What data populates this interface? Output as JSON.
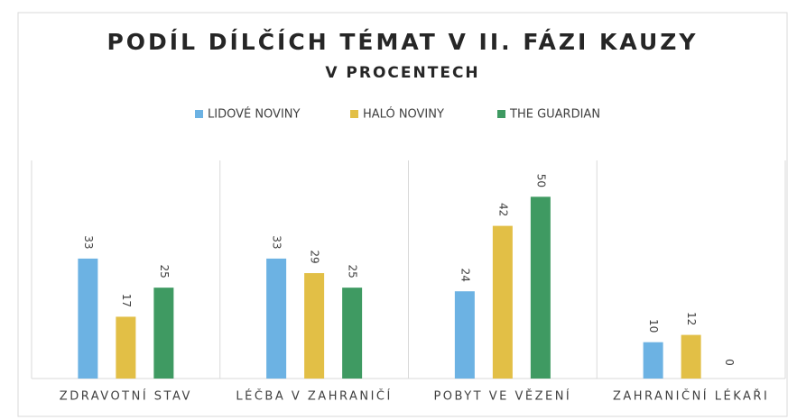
{
  "chart_data": {
    "type": "bar",
    "title": "PODÍL DÍLČÍCH TÉMAT V II. FÁZI KAUZY",
    "subtitle": "V PROCENTECH",
    "categories": [
      "ZDRAVOTNÍ STAV",
      "LÉČBA V ZAHRANIČÍ",
      "POBYT VE VĚZENÍ",
      "ZAHRANIČNÍ LÉKAŘI"
    ],
    "series": [
      {
        "name": "LIDOVÉ NOVINY",
        "color": "#6cb2e3",
        "values": [
          33,
          33,
          24,
          10
        ]
      },
      {
        "name": "HALÓ NOVINY",
        "color": "#e2bf46",
        "values": [
          17,
          29,
          42,
          12
        ]
      },
      {
        "name": "THE GUARDIAN",
        "color": "#3f9a62",
        "values": [
          25,
          25,
          50,
          0
        ]
      }
    ],
    "ylim": [
      0,
      60
    ],
    "legend": "top"
  }
}
